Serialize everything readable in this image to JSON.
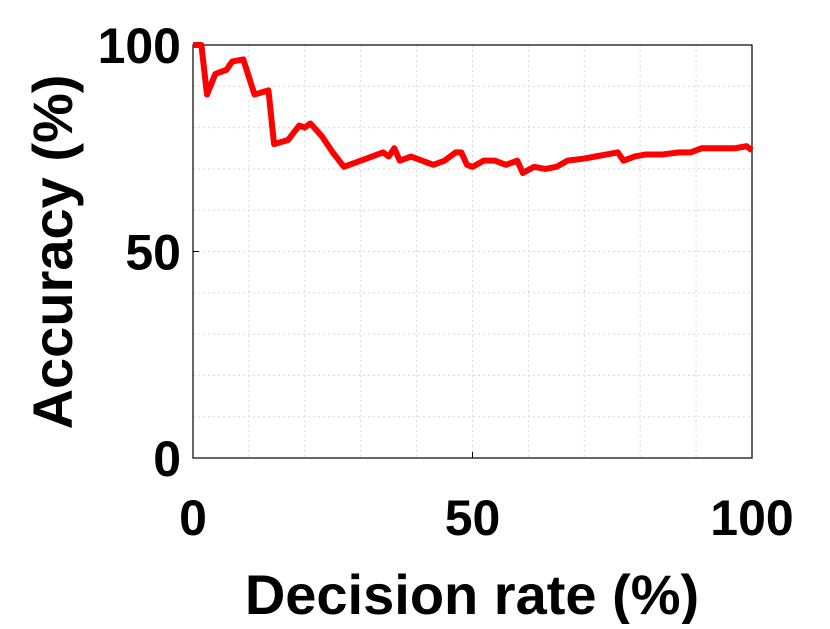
{
  "chart_data": {
    "type": "line",
    "x_label": "Decision rate (%)",
    "y_label": "Accuracy (%)",
    "x": [
      0,
      1.5,
      2.5,
      4,
      6,
      7,
      9,
      11,
      13.5,
      14.5,
      17,
      19,
      20,
      21,
      23,
      25,
      27,
      30,
      32,
      34,
      35,
      36,
      37,
      39,
      41,
      43,
      45,
      47,
      48,
      49,
      50,
      52,
      54,
      56,
      58,
      59,
      61,
      63,
      65,
      67,
      70,
      72,
      74,
      76,
      77,
      79,
      81,
      84,
      87,
      89,
      91,
      94,
      97,
      99,
      100
    ],
    "series": [
      {
        "color": "#ff0000",
        "values": [
          100,
          100,
          88,
          93,
          94,
          96,
          96.5,
          88,
          89,
          76,
          77,
          80.5,
          80,
          81,
          78,
          74,
          70.5,
          72,
          73,
          74,
          73,
          75,
          72,
          73,
          72,
          71,
          72,
          74,
          74,
          71,
          70.5,
          72,
          72,
          71,
          72,
          69,
          70.5,
          70,
          70.5,
          72,
          72.5,
          73,
          73.5,
          74,
          72,
          73,
          73.5,
          73.5,
          74,
          74,
          75,
          75,
          75,
          75.5,
          74.5
        ]
      }
    ],
    "xlim": [
      0,
      100
    ],
    "ylim": [
      0,
      100
    ],
    "xticks": [
      0,
      50,
      100
    ],
    "yticks": [
      0,
      50,
      100
    ],
    "grid": true,
    "minor_grid": {
      "x": [
        10,
        20,
        30,
        40,
        50,
        60,
        70,
        80,
        90
      ],
      "y": [
        10,
        20,
        30,
        40,
        50,
        60,
        70,
        80,
        90
      ]
    }
  }
}
